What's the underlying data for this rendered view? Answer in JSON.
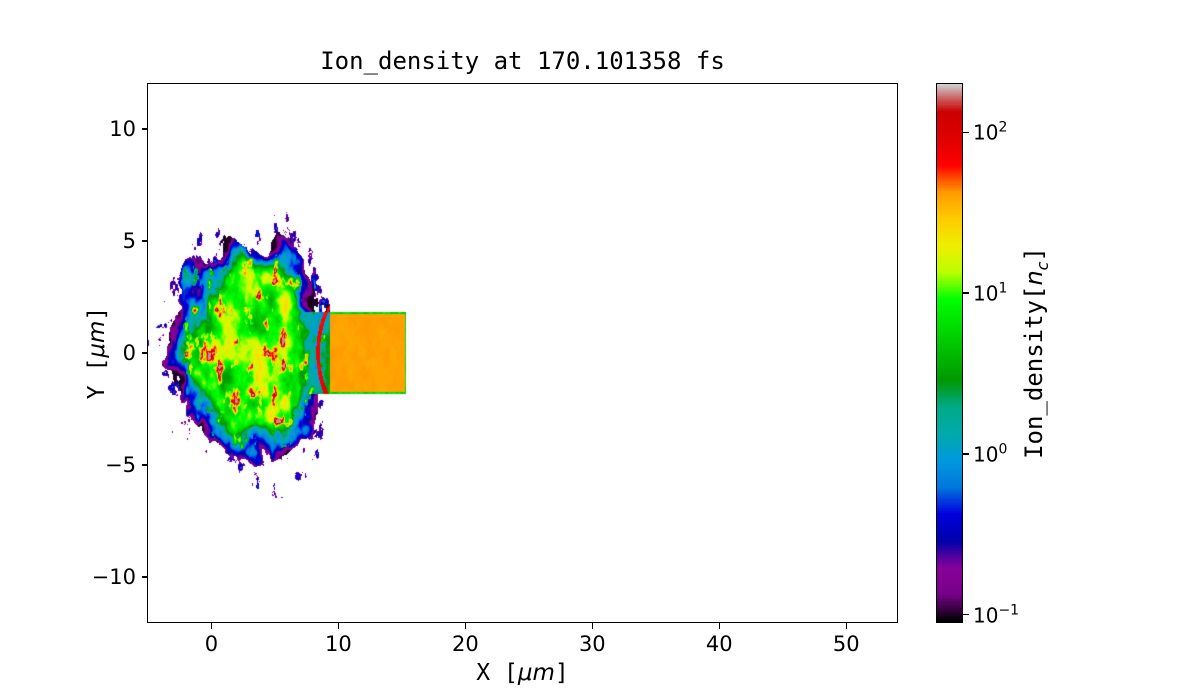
{
  "figure": {
    "background_color": "#ffffff",
    "text_color": "#000000"
  },
  "chart_data": {
    "type": "heatmap",
    "title": "Ion_density at 170.101358 fs",
    "xlabel": {
      "prefix": "X [",
      "math_italic": "μm",
      "suffix": "]"
    },
    "ylabel": {
      "prefix": "Y [",
      "math_italic": "μm",
      "suffix": "]"
    },
    "xlim": [
      -5,
      54
    ],
    "ylim": [
      -12,
      12
    ],
    "grid": false,
    "x_ticks": [
      {
        "value": 0,
        "label": "0"
      },
      {
        "value": 10,
        "label": "10"
      },
      {
        "value": 20,
        "label": "20"
      },
      {
        "value": 30,
        "label": "30"
      },
      {
        "value": 40,
        "label": "40"
      },
      {
        "value": 50,
        "label": "50"
      }
    ],
    "y_ticks": [
      {
        "value": 10,
        "label": "10"
      },
      {
        "value": 5,
        "label": "5"
      },
      {
        "value": 0,
        "label": "0"
      },
      {
        "value": -5,
        "label": "−5"
      },
      {
        "value": -10,
        "label": "−10"
      }
    ],
    "colorbar": {
      "label": {
        "prefix": "Ion_density[",
        "math_italic": "n",
        "math_sub": "c",
        "suffix": "]"
      },
      "scale": "log",
      "vmin": 0.09,
      "vmax": 200,
      "ticks": [
        {
          "value": 100,
          "base": "10",
          "exponent": "2"
        },
        {
          "value": 10,
          "base": "10",
          "exponent": "1"
        },
        {
          "value": 1,
          "base": "10",
          "exponent": "0"
        },
        {
          "value": 0.1,
          "base": "10",
          "exponent": "−1"
        }
      ],
      "colormap": {
        "name": "nipy_spectral",
        "stops": [
          [
            0.0,
            "#000000"
          ],
          [
            0.05,
            "#770088"
          ],
          [
            0.1,
            "#880099"
          ],
          [
            0.15,
            "#0000AA"
          ],
          [
            0.2,
            "#0000DD"
          ],
          [
            0.25,
            "#0077DD"
          ],
          [
            0.3,
            "#0099DD"
          ],
          [
            0.35,
            "#00AAAA"
          ],
          [
            0.4,
            "#00AA88"
          ],
          [
            0.45,
            "#009900"
          ],
          [
            0.5,
            "#00BB00"
          ],
          [
            0.55,
            "#00DD00"
          ],
          [
            0.6,
            "#00FF00"
          ],
          [
            0.65,
            "#BBFF00"
          ],
          [
            0.7,
            "#EEEE00"
          ],
          [
            0.75,
            "#FFCC00"
          ],
          [
            0.8,
            "#FF9900"
          ],
          [
            0.85,
            "#FF0000"
          ],
          [
            0.9,
            "#DD0000"
          ],
          [
            0.95,
            "#CC0000"
          ],
          [
            1.0,
            "#CCCCCC"
          ]
        ]
      }
    },
    "features": {
      "target_slab": {
        "x_range": [
          9.35,
          15.35
        ],
        "y_range": [
          -1.82,
          1.82
        ],
        "density_nc": 40,
        "edge_density_nc": 6
      },
      "plasma_plume": {
        "center": [
          3.0,
          0.0
        ],
        "radius": [
          6.4,
          5.0
        ],
        "x_extent": [
          -4.2,
          9.35
        ],
        "y_extent": [
          -5.4,
          5.4
        ],
        "interior_density_nc": 8,
        "filament_density_nc": 90,
        "halo_density_nc": 0.2,
        "shock_arc": {
          "center": [
            12.0,
            0.0
          ],
          "radius": [
            3.6,
            3.2
          ],
          "density_nc": 80
        }
      }
    }
  }
}
